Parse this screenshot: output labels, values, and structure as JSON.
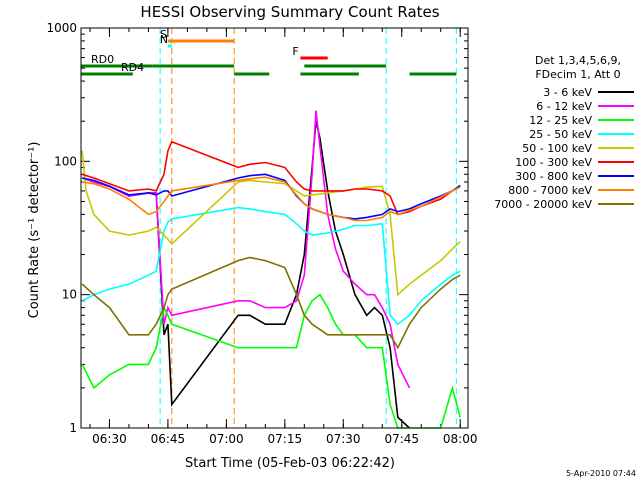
{
  "chart_data": {
    "type": "line",
    "title": "HESSI Observing Summary Count Rates",
    "xlabel": "Start Time (05-Feb-03 06:22:42)",
    "ylabel": "Count Rate (s⁻¹ detector⁻¹)",
    "y_scale": "log",
    "ylim": [
      1,
      1000
    ],
    "xlim": [
      "06:22:42",
      "08:02:00"
    ],
    "x_ticks": [
      "06:30",
      "06:45",
      "07:00",
      "07:15",
      "07:30",
      "07:45",
      "08:00"
    ],
    "y_ticks": [
      "1",
      "10",
      "100",
      "1000"
    ],
    "grid": false,
    "legend_position": "right",
    "legend_header": [
      "Det 1,3,4,5,6,9,",
      "FDecim 1, Att 0"
    ],
    "timestamp": "5-Apr-2010 07:44",
    "flags": [
      {
        "label": "S",
        "color": "#ff8000",
        "start": "06:45",
        "end": "07:02"
      },
      {
        "label": "N",
        "color": "#00ffff",
        "start": "06:45",
        "end": "06:46"
      },
      {
        "label": "F",
        "color": "#ff0000",
        "start": "07:19",
        "end": "07:26"
      },
      {
        "label": "RD0",
        "color": "#007f00",
        "segments": [
          [
            "06:22:42",
            "06:41"
          ],
          [
            "06:41",
            "07:02"
          ],
          [
            "07:20",
            "07:41"
          ]
        ]
      },
      {
        "label": "RD4",
        "color": "#007f00",
        "segments": [
          [
            "06:22:42",
            "06:36"
          ],
          [
            "07:02",
            "07:11"
          ],
          [
            "07:19",
            "07:34"
          ],
          [
            "07:47",
            "07:59"
          ]
        ]
      }
    ],
    "saa_lines": [
      {
        "time": "06:43",
        "color": "#00ffff"
      },
      {
        "time": "06:46",
        "color": "#ff8000"
      },
      {
        "time": "07:02",
        "color": "#ff8000"
      },
      {
        "time": "07:41",
        "color": "#00ffff"
      },
      {
        "time": "07:59",
        "color": "#00ffff"
      }
    ],
    "series": [
      {
        "name": "3 - 6 keV",
        "color": "#000000",
        "points": [
          [
            "06:23",
            75
          ],
          [
            "06:26",
            70
          ],
          [
            "06:30",
            65
          ],
          [
            "06:35",
            55
          ],
          [
            "06:40",
            58
          ],
          [
            "06:42",
            58
          ],
          [
            "06:44",
            5
          ],
          [
            "06:45",
            6
          ],
          [
            "06:46",
            1.5
          ],
          [
            "07:03",
            7
          ],
          [
            "07:06",
            7
          ],
          [
            "07:10",
            6
          ],
          [
            "07:15",
            6
          ],
          [
            "07:18",
            10
          ],
          [
            "07:20",
            20
          ],
          [
            "07:22",
            90
          ],
          [
            "07:23",
            200
          ],
          [
            "07:24",
            150
          ],
          [
            "07:26",
            60
          ],
          [
            "07:28",
            30
          ],
          [
            "07:30",
            20
          ],
          [
            "07:33",
            10
          ],
          [
            "07:36",
            7
          ],
          [
            "07:38",
            8
          ],
          [
            "07:40",
            7
          ],
          [
            "07:42",
            4
          ],
          [
            "07:44",
            1.2
          ],
          [
            "07:47",
            1
          ]
        ]
      },
      {
        "name": "6 - 12 keV",
        "color": "#ff00ff",
        "points": [
          [
            "06:23",
            75
          ],
          [
            "06:26",
            70
          ],
          [
            "06:30",
            65
          ],
          [
            "06:35",
            55
          ],
          [
            "06:40",
            58
          ],
          [
            "06:42",
            58
          ],
          [
            "06:44",
            6
          ],
          [
            "06:45",
            8
          ],
          [
            "06:46",
            7
          ],
          [
            "07:03",
            9
          ],
          [
            "07:06",
            9
          ],
          [
            "07:10",
            8
          ],
          [
            "07:15",
            8
          ],
          [
            "07:18",
            9
          ],
          [
            "07:20",
            14
          ],
          [
            "07:22",
            80
          ],
          [
            "07:23",
            240
          ],
          [
            "07:24",
            130
          ],
          [
            "07:26",
            40
          ],
          [
            "07:28",
            22
          ],
          [
            "07:30",
            15
          ],
          [
            "07:33",
            12
          ],
          [
            "07:36",
            10
          ],
          [
            "07:38",
            10
          ],
          [
            "07:40",
            8
          ],
          [
            "07:42",
            6
          ],
          [
            "07:44",
            3
          ],
          [
            "07:47",
            2
          ]
        ]
      },
      {
        "name": "12 - 25 keV",
        "color": "#00ff00",
        "points": [
          [
            "06:23",
            3
          ],
          [
            "06:26",
            2
          ],
          [
            "06:30",
            2.5
          ],
          [
            "06:35",
            3
          ],
          [
            "06:40",
            3
          ],
          [
            "06:42",
            4
          ],
          [
            "06:44",
            8
          ],
          [
            "06:45",
            7
          ],
          [
            "06:46",
            6
          ],
          [
            "07:03",
            4
          ],
          [
            "07:06",
            4
          ],
          [
            "07:10",
            4
          ],
          [
            "07:15",
            4
          ],
          [
            "07:18",
            4
          ],
          [
            "07:20",
            7
          ],
          [
            "07:22",
            9
          ],
          [
            "07:24",
            10
          ],
          [
            "07:26",
            8
          ],
          [
            "07:28",
            6
          ],
          [
            "07:30",
            5
          ],
          [
            "07:33",
            5
          ],
          [
            "07:36",
            4
          ],
          [
            "07:40",
            4
          ],
          [
            "07:42",
            1.5
          ],
          [
            "07:44",
            1
          ],
          [
            "07:50",
            1
          ],
          [
            "07:55",
            1
          ],
          [
            "07:58",
            2
          ],
          [
            "08:00",
            1.2
          ]
        ]
      },
      {
        "name": "25 - 50 keV",
        "color": "#00ffff",
        "points": [
          [
            "06:23",
            9
          ],
          [
            "06:26",
            10
          ],
          [
            "06:30",
            11
          ],
          [
            "06:35",
            12
          ],
          [
            "06:40",
            14
          ],
          [
            "06:42",
            15
          ],
          [
            "06:44",
            30
          ],
          [
            "06:45",
            35
          ],
          [
            "06:46",
            37
          ],
          [
            "07:03",
            45
          ],
          [
            "07:06",
            44
          ],
          [
            "07:10",
            42
          ],
          [
            "07:15",
            40
          ],
          [
            "07:18",
            34
          ],
          [
            "07:20",
            30
          ],
          [
            "07:22",
            28
          ],
          [
            "07:26",
            29
          ],
          [
            "07:30",
            31
          ],
          [
            "07:33",
            33
          ],
          [
            "07:36",
            33
          ],
          [
            "07:40",
            34
          ],
          [
            "07:42",
            7
          ],
          [
            "07:44",
            6
          ],
          [
            "07:47",
            7
          ],
          [
            "07:50",
            9
          ],
          [
            "07:55",
            12
          ],
          [
            "07:58",
            14
          ],
          [
            "08:00",
            15
          ]
        ]
      },
      {
        "name": "50 - 100 keV",
        "color": "#c8c800",
        "points": [
          [
            "06:23",
            120
          ],
          [
            "06:24",
            60
          ],
          [
            "06:26",
            40
          ],
          [
            "06:30",
            30
          ],
          [
            "06:35",
            28
          ],
          [
            "06:40",
            30
          ],
          [
            "06:42",
            32
          ],
          [
            "06:44",
            28
          ],
          [
            "06:45",
            26
          ],
          [
            "06:46",
            24
          ],
          [
            "07:03",
            70
          ],
          [
            "07:06",
            72
          ],
          [
            "07:10",
            70
          ],
          [
            "07:15",
            68
          ],
          [
            "07:18",
            60
          ],
          [
            "07:20",
            55
          ],
          [
            "07:22",
            56
          ],
          [
            "07:26",
            58
          ],
          [
            "07:30",
            60
          ],
          [
            "07:33",
            62
          ],
          [
            "07:36",
            64
          ],
          [
            "07:40",
            65
          ],
          [
            "07:42",
            40
          ],
          [
            "07:44",
            10
          ],
          [
            "07:47",
            12
          ],
          [
            "07:50",
            14
          ],
          [
            "07:55",
            18
          ],
          [
            "07:58",
            22
          ],
          [
            "08:00",
            25
          ]
        ]
      },
      {
        "name": "100 - 300 keV",
        "color": "#ff0000",
        "points": [
          [
            "06:23",
            80
          ],
          [
            "06:26",
            75
          ],
          [
            "06:30",
            68
          ],
          [
            "06:35",
            60
          ],
          [
            "06:40",
            62
          ],
          [
            "06:42",
            60
          ],
          [
            "06:44",
            80
          ],
          [
            "06:45",
            120
          ],
          [
            "06:46",
            140
          ],
          [
            "07:03",
            90
          ],
          [
            "07:06",
            95
          ],
          [
            "07:10",
            98
          ],
          [
            "07:15",
            90
          ],
          [
            "07:18",
            70
          ],
          [
            "07:20",
            62
          ],
          [
            "07:22",
            60
          ],
          [
            "07:26",
            60
          ],
          [
            "07:30",
            60
          ],
          [
            "07:33",
            62
          ],
          [
            "07:36",
            62
          ],
          [
            "07:40",
            60
          ],
          [
            "07:42",
            55
          ],
          [
            "07:44",
            40
          ],
          [
            "07:47",
            42
          ],
          [
            "07:50",
            46
          ],
          [
            "07:55",
            52
          ],
          [
            "07:58",
            60
          ],
          [
            "08:00",
            65
          ]
        ]
      },
      {
        "name": "300 - 800 keV",
        "color": "#0000ff",
        "points": [
          [
            "06:23",
            75
          ],
          [
            "06:26",
            72
          ],
          [
            "06:30",
            65
          ],
          [
            "06:35",
            56
          ],
          [
            "06:40",
            58
          ],
          [
            "06:42",
            56
          ],
          [
            "06:44",
            60
          ],
          [
            "06:45",
            60
          ],
          [
            "06:46",
            55
          ],
          [
            "07:03",
            75
          ],
          [
            "07:06",
            78
          ],
          [
            "07:10",
            80
          ],
          [
            "07:15",
            72
          ],
          [
            "07:18",
            55
          ],
          [
            "07:20",
            48
          ],
          [
            "07:22",
            44
          ],
          [
            "07:26",
            40
          ],
          [
            "07:30",
            38
          ],
          [
            "07:33",
            37
          ],
          [
            "07:36",
            38
          ],
          [
            "07:40",
            40
          ],
          [
            "07:42",
            44
          ],
          [
            "07:44",
            42
          ],
          [
            "07:47",
            44
          ],
          [
            "07:50",
            48
          ],
          [
            "07:55",
            55
          ],
          [
            "07:58",
            60
          ],
          [
            "08:00",
            66
          ]
        ]
      },
      {
        "name": "800 - 7000 keV",
        "color": "#ff8000",
        "points": [
          [
            "06:23",
            70
          ],
          [
            "06:26",
            68
          ],
          [
            "06:30",
            62
          ],
          [
            "06:35",
            52
          ],
          [
            "06:40",
            40
          ],
          [
            "06:42",
            42
          ],
          [
            "06:44",
            50
          ],
          [
            "06:45",
            55
          ],
          [
            "06:46",
            60
          ],
          [
            "07:03",
            72
          ],
          [
            "07:06",
            74
          ],
          [
            "07:10",
            76
          ],
          [
            "07:15",
            70
          ],
          [
            "07:18",
            56
          ],
          [
            "07:20",
            48
          ],
          [
            "07:22",
            44
          ],
          [
            "07:26",
            40
          ],
          [
            "07:30",
            38
          ],
          [
            "07:33",
            36
          ],
          [
            "07:36",
            36
          ],
          [
            "07:40",
            38
          ],
          [
            "07:42",
            42
          ],
          [
            "07:44",
            40
          ],
          [
            "07:47",
            43
          ],
          [
            "07:50",
            46
          ],
          [
            "07:55",
            54
          ],
          [
            "07:58",
            60
          ],
          [
            "08:00",
            64
          ]
        ]
      },
      {
        "name": "7000 - 20000 keV",
        "color": "#807000",
        "points": [
          [
            "06:23",
            12
          ],
          [
            "06:26",
            10
          ],
          [
            "06:30",
            8
          ],
          [
            "06:35",
            5
          ],
          [
            "06:40",
            5
          ],
          [
            "06:42",
            6
          ],
          [
            "06:44",
            8
          ],
          [
            "06:45",
            10
          ],
          [
            "06:46",
            11
          ],
          [
            "07:03",
            18
          ],
          [
            "07:06",
            19
          ],
          [
            "07:10",
            18
          ],
          [
            "07:15",
            16
          ],
          [
            "07:18",
            10
          ],
          [
            "07:20",
            7
          ],
          [
            "07:22",
            6
          ],
          [
            "07:26",
            5
          ],
          [
            "07:30",
            5
          ],
          [
            "07:33",
            5
          ],
          [
            "07:36",
            5
          ],
          [
            "07:40",
            5
          ],
          [
            "07:42",
            5
          ],
          [
            "07:44",
            4
          ],
          [
            "07:47",
            6
          ],
          [
            "07:50",
            8
          ],
          [
            "07:55",
            11
          ],
          [
            "07:58",
            13
          ],
          [
            "08:00",
            14
          ]
        ]
      }
    ]
  }
}
